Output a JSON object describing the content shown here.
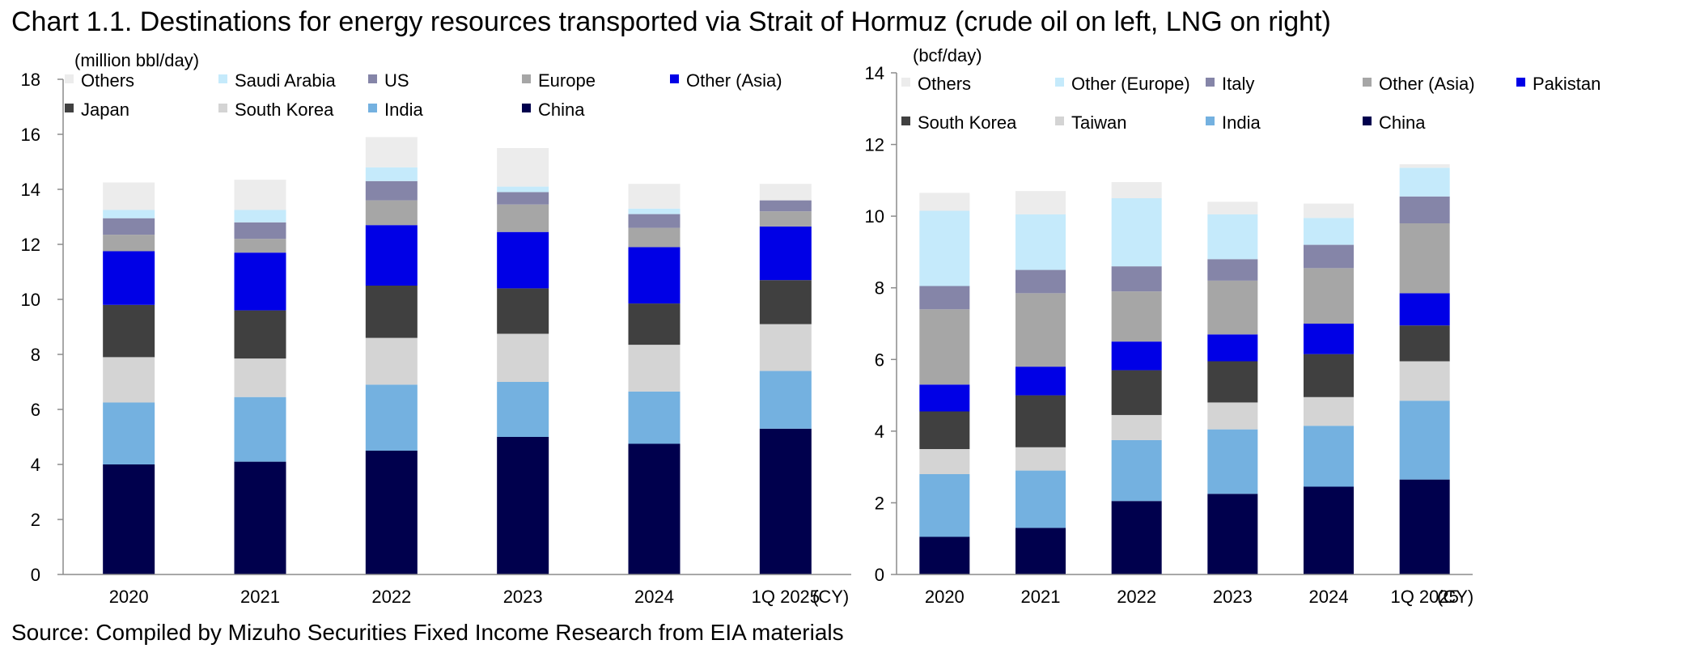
{
  "title": "Chart 1.1. Destinations for energy resources transported via Strait of Hormuz (crude oil on left, LNG on right)",
  "source": "Source: Compiled by Mizuho Securities Fixed Income Research from EIA materials",
  "chart_data": [
    {
      "type": "bar",
      "stacked": true,
      "subject": "crude oil",
      "unit_label": "(million bbl/day)",
      "x_suffix": "(CY)",
      "ylim": [
        0,
        18
      ],
      "yticks": [
        0,
        2,
        4,
        6,
        8,
        10,
        12,
        14,
        16,
        18
      ],
      "categories": [
        "2020",
        "2021",
        "2022",
        "2023",
        "2024",
        "1Q 2025"
      ],
      "legend": [
        "Others",
        "Saudi Arabia",
        "US",
        "Europe",
        "Other (Asia)",
        "Japan",
        "South Korea",
        "India",
        "China"
      ],
      "series": [
        {
          "name": "China",
          "color": "#00004d",
          "values": [
            4.0,
            4.1,
            4.5,
            5.0,
            4.75,
            5.3
          ]
        },
        {
          "name": "India",
          "color": "#74b1e0",
          "values": [
            2.25,
            2.35,
            2.4,
            2.0,
            1.9,
            2.1
          ]
        },
        {
          "name": "South Korea",
          "color": "#d4d4d4",
          "values": [
            1.65,
            1.4,
            1.7,
            1.75,
            1.7,
            1.7
          ]
        },
        {
          "name": "Japan",
          "color": "#404040",
          "values": [
            1.9,
            1.75,
            1.9,
            1.65,
            1.5,
            1.6
          ]
        },
        {
          "name": "Other (Asia)",
          "color": "#0000e6",
          "values": [
            1.95,
            2.1,
            2.2,
            2.05,
            2.05,
            1.95
          ]
        },
        {
          "name": "Europe",
          "color": "#a6a6a6",
          "values": [
            0.6,
            0.5,
            0.9,
            1.0,
            0.7,
            0.55
          ]
        },
        {
          "name": "US",
          "color": "#8585a8",
          "values": [
            0.6,
            0.6,
            0.7,
            0.45,
            0.5,
            0.4
          ]
        },
        {
          "name": "Saudi Arabia",
          "color": "#c5eafb",
          "values": [
            0.3,
            0.45,
            0.5,
            0.2,
            0.2,
            0.0
          ]
        },
        {
          "name": "Others",
          "color": "#ececec",
          "values": [
            1.0,
            1.1,
            1.1,
            1.4,
            0.9,
            0.6
          ]
        }
      ]
    },
    {
      "type": "bar",
      "stacked": true,
      "subject": "LNG",
      "unit_label": "(bcf/day)",
      "x_suffix": "(CY)",
      "ylim": [
        0,
        14
      ],
      "yticks": [
        0,
        2,
        4,
        6,
        8,
        10,
        12,
        14
      ],
      "categories": [
        "2020",
        "2021",
        "2022",
        "2023",
        "2024",
        "1Q 2025"
      ],
      "legend": [
        "Others",
        "Other (Europe)",
        "Italy",
        "Other (Asia)",
        "Pakistan",
        "South Korea",
        "Taiwan",
        "India",
        "China"
      ],
      "series": [
        {
          "name": "China",
          "color": "#00004d",
          "values": [
            1.05,
            1.3,
            2.05,
            2.25,
            2.45,
            2.65
          ]
        },
        {
          "name": "India",
          "color": "#74b1e0",
          "values": [
            1.75,
            1.6,
            1.7,
            1.8,
            1.7,
            2.2
          ]
        },
        {
          "name": "Taiwan",
          "color": "#d4d4d4",
          "values": [
            0.7,
            0.65,
            0.7,
            0.75,
            0.8,
            1.1
          ]
        },
        {
          "name": "South Korea",
          "color": "#404040",
          "values": [
            1.05,
            1.45,
            1.25,
            1.15,
            1.2,
            1.0
          ]
        },
        {
          "name": "Pakistan",
          "color": "#0000e6",
          "values": [
            0.75,
            0.8,
            0.8,
            0.75,
            0.85,
            0.9
          ]
        },
        {
          "name": "Other (Asia)",
          "color": "#a6a6a6",
          "values": [
            2.1,
            2.05,
            1.4,
            1.5,
            1.55,
            1.95
          ]
        },
        {
          "name": "Italy",
          "color": "#8585a8",
          "values": [
            0.65,
            0.65,
            0.7,
            0.6,
            0.65,
            0.75
          ]
        },
        {
          "name": "Other (Europe)",
          "color": "#c5eafb",
          "values": [
            2.1,
            1.55,
            1.9,
            1.25,
            0.75,
            0.8
          ]
        },
        {
          "name": "Others",
          "color": "#ececec",
          "values": [
            0.5,
            0.65,
            0.45,
            0.35,
            0.4,
            0.1
          ]
        }
      ]
    }
  ]
}
